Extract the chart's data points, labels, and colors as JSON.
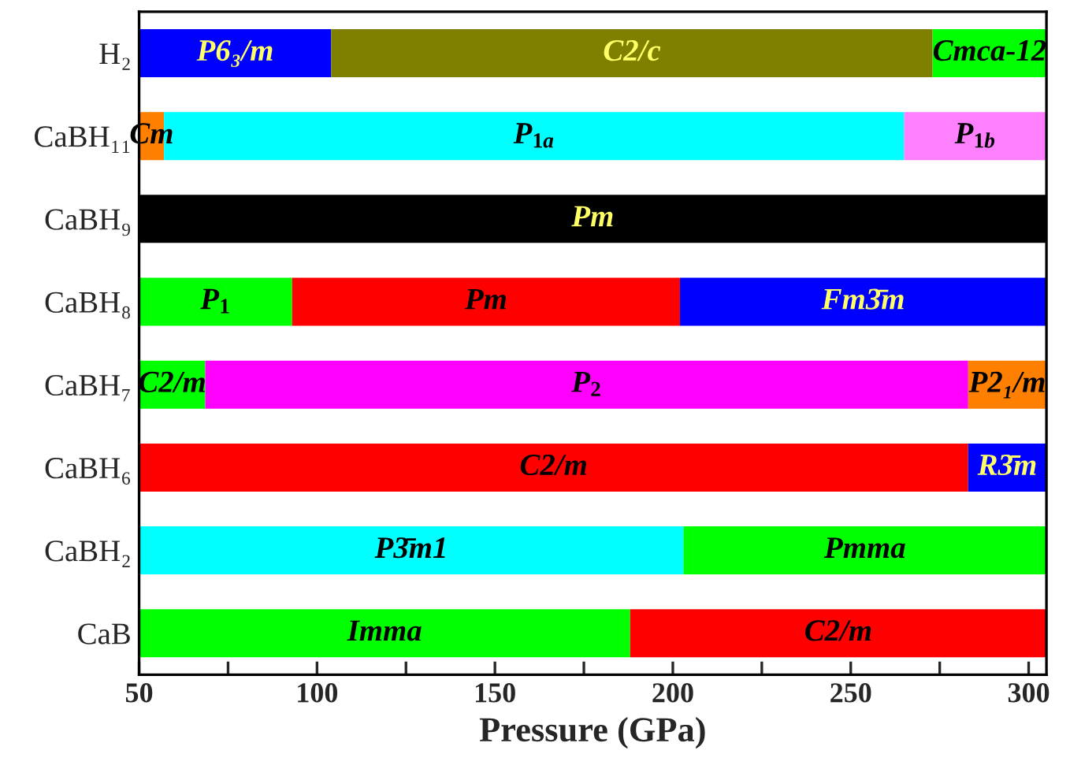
{
  "chart_data": {
    "type": "bar",
    "orientation": "horizontal",
    "xlabel": "Pressure (GPa)",
    "categories": [
      "H₂",
      "CaBH₁₁",
      "CaBH₉",
      "CaBH₈",
      "CaBH₇",
      "CaBH₆",
      "CaBH₂",
      "CaB"
    ],
    "series": [
      {
        "name": "P6₃/m",
        "color": "#0000ff",
        "base": [
          50,
          null,
          null,
          null,
          null,
          null,
          null,
          null
        ],
        "values": [
          54,
          null,
          null,
          null,
          null,
          null,
          null,
          null
        ]
      },
      {
        "name": "C2/c",
        "color": "#808000",
        "base": [
          104,
          null,
          null,
          null,
          null,
          null,
          null,
          null
        ],
        "values": [
          169,
          null,
          null,
          null,
          null,
          null,
          null,
          null
        ]
      },
      {
        "name": "Cmca-12",
        "color": "#00ff00",
        "base": [
          273,
          null,
          null,
          null,
          null,
          null,
          null,
          null
        ],
        "values": [
          32,
          null,
          null,
          null,
          null,
          null,
          null,
          null
        ]
      },
      {
        "name": "Cm",
        "color": "#ff8000",
        "base": [
          null,
          50,
          null,
          null,
          null,
          null,
          null,
          null
        ],
        "values": [
          null,
          7,
          null,
          null,
          null,
          null,
          null,
          null
        ]
      },
      {
        "name": "P$_{1a}$",
        "color": "#00ffff",
        "base": [
          null,
          57,
          null,
          null,
          null,
          null,
          null,
          null
        ],
        "values": [
          null,
          208,
          null,
          null,
          null,
          null,
          null,
          null
        ]
      },
      {
        "name": "P$_{1b}$",
        "color": "#ff80ff",
        "base": [
          null,
          265,
          null,
          null,
          null,
          null,
          null,
          null
        ],
        "values": [
          null,
          40,
          null,
          null,
          null,
          null,
          null,
          null
        ]
      },
      {
        "name": "Pm",
        "color": "#000000",
        "base": [
          null,
          null,
          50,
          null,
          null,
          null,
          null,
          null
        ],
        "values": [
          null,
          null,
          255,
          null,
          null,
          null,
          null,
          null
        ]
      },
      {
        "name": "P$_{1}$",
        "color": "#00ff00",
        "base": [
          null,
          null,
          null,
          50,
          null,
          null,
          null,
          null
        ],
        "values": [
          null,
          null,
          null,
          43,
          null,
          null,
          null,
          null
        ]
      },
      {
        "name": "Pm",
        "color": "#ff0000",
        "base": [
          null,
          null,
          null,
          93,
          null,
          null,
          null,
          null
        ],
        "values": [
          null,
          null,
          null,
          109,
          null,
          null,
          null,
          null
        ]
      },
      {
        "name": "Fm3̄m",
        "color": "#0000ff",
        "base": [
          null,
          null,
          null,
          202,
          null,
          null,
          null,
          null
        ],
        "values": [
          null,
          null,
          null,
          103,
          null,
          null,
          null,
          null
        ]
      },
      {
        "name": "C2/m",
        "color": "#00ff00",
        "base": [
          null,
          null,
          null,
          null,
          50,
          null,
          null,
          null
        ],
        "values": [
          null,
          null,
          null,
          null,
          18.6,
          null,
          null,
          null
        ]
      },
      {
        "name": "P$_{2}$",
        "color": "#ff00ff",
        "base": [
          null,
          null,
          null,
          null,
          68.6,
          null,
          null,
          null
        ],
        "values": [
          null,
          null,
          null,
          null,
          214.4,
          null,
          null,
          null
        ]
      },
      {
        "name": "P2₁/m",
        "color": "#ff8000",
        "base": [
          null,
          null,
          null,
          null,
          283,
          null,
          null,
          null
        ],
        "values": [
          null,
          null,
          null,
          null,
          22,
          null,
          null,
          null
        ]
      },
      {
        "name": "C2/m",
        "color": "#ff0000",
        "base": [
          null,
          null,
          null,
          null,
          null,
          50,
          null,
          null
        ],
        "values": [
          null,
          null,
          null,
          null,
          null,
          233,
          null,
          null
        ]
      },
      {
        "name": "R3̄m",
        "color": "#0000ff",
        "base": [
          null,
          null,
          null,
          null,
          null,
          283,
          null,
          null
        ],
        "values": [
          null,
          null,
          null,
          null,
          null,
          22,
          null,
          null
        ]
      },
      {
        "name": "P3̄m1",
        "color": "#00ffff",
        "base": [
          null,
          null,
          null,
          null,
          null,
          null,
          50,
          null
        ],
        "values": [
          null,
          null,
          null,
          null,
          null,
          null,
          153,
          null
        ]
      },
      {
        "name": "Pmma",
        "color": "#00ff00",
        "base": [
          null,
          null,
          null,
          null,
          null,
          null,
          203,
          null
        ],
        "values": [
          null,
          null,
          null,
          null,
          null,
          null,
          102,
          null
        ]
      },
      {
        "name": "Imma",
        "color": "#00ff00",
        "base": [
          null,
          null,
          null,
          null,
          null,
          null,
          null,
          50
        ],
        "values": [
          null,
          null,
          null,
          null,
          null,
          null,
          null,
          138
        ]
      },
      {
        "name": "C2/m",
        "color": "#ff0000",
        "base": [
          null,
          null,
          null,
          null,
          null,
          null,
          null,
          188
        ],
        "values": [
          null,
          null,
          null,
          null,
          null,
          null,
          null,
          117
        ]
      }
    ],
    "xlim": [
      50,
      305
    ],
    "xticks": [
      50,
      {
        "value": 75,
        "label": null
      },
      100,
      {
        "value": 125,
        "label": null
      },
      150,
      {
        "value": 175,
        "label": null
      },
      200,
      {
        "value": 225,
        "label": null
      },
      250,
      {
        "value": 275,
        "label": null
      },
      300
    ],
    "grid": false,
    "legend": false
  }
}
